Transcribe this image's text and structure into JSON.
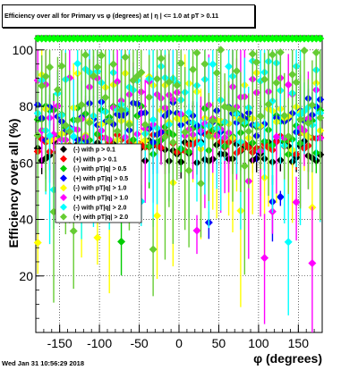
{
  "chart_data": {
    "type": "scatter",
    "title": "Efficiency over all for Primary vs φ (degrees) at | η | <= 1.0 at pT > 0.11",
    "xlabel": "φ (degrees)",
    "ylabel": "Efficiency over all (%)",
    "xlim": [
      -180,
      180
    ],
    "ylim": [
      0,
      105
    ],
    "x_ticks": [
      "-150",
      "-100",
      "-50",
      "0",
      "50",
      "100",
      "150"
    ],
    "y_ticks": [
      "20",
      "40",
      "60",
      "80",
      "100"
    ],
    "grid": true,
    "legend_position": "left-middle",
    "legend": [
      {
        "label": "(-) with p > 0.1",
        "color": "#000000",
        "marker": "diamond"
      },
      {
        "label": "(+) with p > 0.1",
        "color": "#ff0000",
        "marker": "diamond"
      },
      {
        "label": "(-) with pT|q| > 0.5",
        "color": "#00cc00",
        "marker": "diamond"
      },
      {
        "label": "(+) with pT|q| > 0.5",
        "color": "#0000ff",
        "marker": "diamond"
      },
      {
        "label": "(-) with pT|q| > 1.0",
        "color": "#ffff00",
        "marker": "diamond"
      },
      {
        "label": "(+) with pT|q| > 1.0",
        "color": "#ff00ff",
        "marker": "diamond"
      },
      {
        "label": "(-) with pT|q| > 2.0",
        "color": "#00ffff",
        "marker": "diamond"
      },
      {
        "label": "(+) with pT|q| > 2.0",
        "color": "#66cc33",
        "marker": "diamond"
      }
    ],
    "series": [
      {
        "color": "#000000",
        "center": 64,
        "spread": 4,
        "err": 2,
        "seed": 11
      },
      {
        "color": "#ff0000",
        "center": 67,
        "spread": 4,
        "err": 2,
        "seed": 23
      },
      {
        "color": "#00cc00",
        "center": 72,
        "spread": 9,
        "err": 5,
        "seed": 37
      },
      {
        "color": "#0000ff",
        "center": 75,
        "spread": 8,
        "err": 5,
        "seed": 41
      },
      {
        "color": "#ffff00",
        "center": 78,
        "spread": 14,
        "err": 12,
        "seed": 53
      },
      {
        "color": "#ff00ff",
        "center": 80,
        "spread": 12,
        "err": 10,
        "seed": 67
      },
      {
        "color": "#00ffff",
        "center": 82,
        "spread": 16,
        "err": 14,
        "seed": 79
      },
      {
        "color": "#66cc33",
        "center": 84,
        "spread": 17,
        "err": 15,
        "seed": 97
      },
      {
        "color": "#00ff00",
        "center": 104,
        "spread": 0,
        "err": 0,
        "seed": 5,
        "flat": true
      }
    ]
  },
  "footer": {
    "timestamp": "Wed Jan 31 10:56:29 2018"
  }
}
